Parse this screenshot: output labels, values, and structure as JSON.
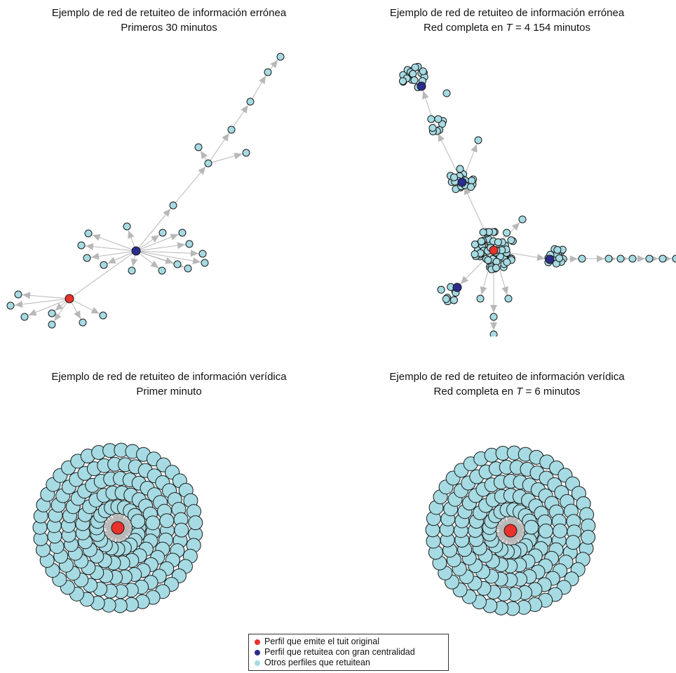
{
  "panels": [
    {
      "title_line1": "Ejemplo de red de retuiteo de información errónea",
      "title_line2": "Primeros 30 minutos"
    },
    {
      "title_line1": "Ejemplo de red de retuiteo de información errónea",
      "title_line2_prefix": "Red completa en ",
      "title_line2_var": "T",
      "title_line2_suffix": " = 4 154 minutos"
    },
    {
      "title_line1": "Ejemplo de red de retuiteo de información verídica",
      "title_line2": "Primer minuto"
    },
    {
      "title_line1": "Ejemplo de red de retuiteo de información verídica",
      "title_line2_prefix": "Red completa en ",
      "title_line2_var": "T",
      "title_line2_suffix": " = 6 minutos"
    }
  ],
  "legend": {
    "items": [
      {
        "label": "Perfil que emite el tuit original",
        "color": "#e8322b"
      },
      {
        "label": "Perfil que retuitea con gran centralidad",
        "color": "#2b2d8c"
      },
      {
        "label": "Otros perfiles que retuitean",
        "color": "#a6dbe3"
      }
    ]
  },
  "colors": {
    "origin": "#e8322b",
    "hub": "#2b2d8c",
    "other": "#a6dbe3",
    "edge": "#b8b8b8",
    "stroke": "#1a1a1a"
  }
}
